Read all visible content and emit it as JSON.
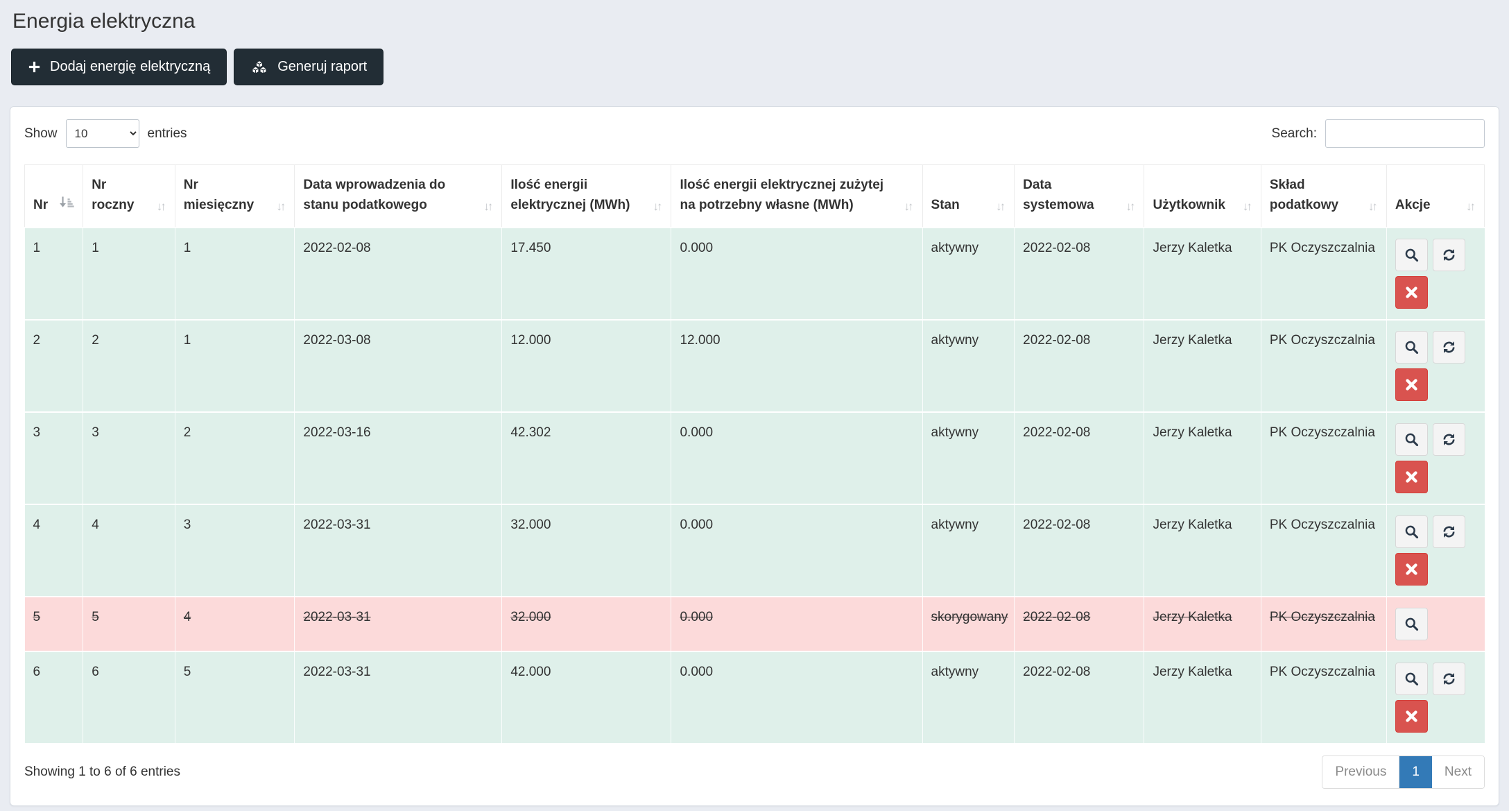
{
  "page": {
    "title": "Energia elektryczna"
  },
  "toolbar": {
    "add_button": "Dodaj energię elektryczną",
    "report_button": "Generuj raport",
    "add_icon": "plus-icon",
    "report_icon": "cubes-icon"
  },
  "controls": {
    "show_label": "Show",
    "entries_label": "entries",
    "page_length": "10",
    "page_length_options": [
      "10"
    ],
    "search_label": "Search:",
    "search_value": ""
  },
  "table": {
    "columns": [
      {
        "label": "Nr",
        "sort": "sorted-asc"
      },
      {
        "label": "Nr roczny",
        "sort": "unsorted"
      },
      {
        "label": "Nr miesięczny",
        "sort": "unsorted"
      },
      {
        "label": "Data wprowadzenia do stanu podatkowego",
        "sort": "unsorted"
      },
      {
        "label": "Ilość energii elektrycznej (MWh)",
        "sort": "unsorted"
      },
      {
        "label": "Ilość energii elektrycznej zużytej na potrzebny własne (MWh)",
        "sort": "unsorted"
      },
      {
        "label": "Stan",
        "sort": "unsorted"
      },
      {
        "label": "Data systemowa",
        "sort": "unsorted"
      },
      {
        "label": "Użytkownik",
        "sort": "unsorted"
      },
      {
        "label": "Skład podatkowy",
        "sort": "unsorted"
      },
      {
        "label": "Akcje",
        "sort": "unsorted"
      }
    ],
    "rows": [
      {
        "cells": [
          "1",
          "1",
          "1",
          "2022-02-08",
          "17.450",
          "0.000",
          "aktywny",
          "2022-02-08",
          "Jerzy Kaletka",
          "PK Oczyszczalnia"
        ],
        "struck": false,
        "actions": [
          "view",
          "refresh",
          "delete"
        ]
      },
      {
        "cells": [
          "2",
          "2",
          "1",
          "2022-03-08",
          "12.000",
          "12.000",
          "aktywny",
          "2022-02-08",
          "Jerzy Kaletka",
          "PK Oczyszczalnia"
        ],
        "struck": false,
        "actions": [
          "view",
          "refresh",
          "delete"
        ]
      },
      {
        "cells": [
          "3",
          "3",
          "2",
          "2022-03-16",
          "42.302",
          "0.000",
          "aktywny",
          "2022-02-08",
          "Jerzy Kaletka",
          "PK Oczyszczalnia"
        ],
        "struck": false,
        "actions": [
          "view",
          "refresh",
          "delete"
        ]
      },
      {
        "cells": [
          "4",
          "4",
          "3",
          "2022-03-31",
          "32.000",
          "0.000",
          "aktywny",
          "2022-02-08",
          "Jerzy Kaletka",
          "PK Oczyszczalnia"
        ],
        "struck": false,
        "actions": [
          "view",
          "refresh",
          "delete"
        ]
      },
      {
        "cells": [
          "5",
          "5",
          "4",
          "2022-03-31",
          "32.000",
          "0.000",
          "skorygowany",
          "2022-02-08",
          "Jerzy Kaletka",
          "PK Oczyszczalnia"
        ],
        "struck": true,
        "actions": [
          "view"
        ]
      },
      {
        "cells": [
          "6",
          "6",
          "5",
          "2022-03-31",
          "42.000",
          "0.000",
          "aktywny",
          "2022-02-08",
          "Jerzy Kaletka",
          "PK Oczyszczalnia"
        ],
        "struck": false,
        "actions": [
          "view",
          "refresh",
          "delete"
        ]
      }
    ]
  },
  "footer": {
    "summary": "Showing 1 to 6 of 6 entries",
    "pagination": {
      "previous": "Previous",
      "pages": [
        {
          "label": "1",
          "active": true
        }
      ],
      "next": "Next"
    }
  },
  "colors": {
    "button_dark": "#222d35",
    "danger": "#d9534f",
    "accent": "#337ab7",
    "row_green": "#dff0ea",
    "row_corrected": "#fcdada",
    "page_bg": "#e9ecf2"
  }
}
